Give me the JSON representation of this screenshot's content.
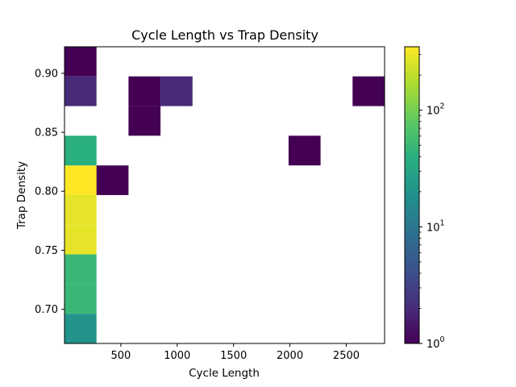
{
  "chart_data": {
    "type": "heatmap",
    "title": "Cycle Length vs Trap Density",
    "xlabel": "Cycle Length",
    "ylabel": "Trap Density",
    "xlim": [
      0,
      2840
    ],
    "ylim": [
      0.671,
      0.9225
    ],
    "x_ticks": [
      {
        "value": 500,
        "label": "500"
      },
      {
        "value": 1000,
        "label": "1000"
      },
      {
        "value": 1500,
        "label": "1500"
      },
      {
        "value": 2000,
        "label": "2000"
      },
      {
        "value": 2500,
        "label": "2500"
      }
    ],
    "y_ticks": [
      {
        "value": 0.7,
        "label": "0.70"
      },
      {
        "value": 0.75,
        "label": "0.75"
      },
      {
        "value": 0.8,
        "label": "0.80"
      },
      {
        "value": 0.85,
        "label": "0.85"
      },
      {
        "value": 0.9,
        "label": "0.90"
      }
    ],
    "grid": false,
    "colormap": "viridis",
    "colorbar": {
      "scale": "log",
      "vmin": 1,
      "vmax": 350,
      "ticks": [
        {
          "value": 1,
          "base": "10",
          "exp": "0"
        },
        {
          "value": 10,
          "base": "10",
          "exp": "1"
        },
        {
          "value": 100,
          "base": "10",
          "exp": "2"
        }
      ]
    },
    "cells": [
      {
        "x0": 0,
        "x1": 284,
        "y0": 0.671,
        "y1": 0.6962,
        "count": 20
      },
      {
        "x0": 0,
        "x1": 284,
        "y0": 0.6962,
        "y1": 0.7213,
        "count": 50
      },
      {
        "x0": 0,
        "x1": 284,
        "y0": 0.7213,
        "y1": 0.7465,
        "count": 50
      },
      {
        "x0": 0,
        "x1": 284,
        "y0": 0.7465,
        "y1": 0.7716,
        "count": 280
      },
      {
        "x0": 0,
        "x1": 284,
        "y0": 0.7716,
        "y1": 0.7968,
        "count": 280
      },
      {
        "x0": 0,
        "x1": 284,
        "y0": 0.7968,
        "y1": 0.8219,
        "count": 350
      },
      {
        "x0": 0,
        "x1": 284,
        "y0": 0.8219,
        "y1": 0.8471,
        "count": 40
      },
      {
        "x0": 0,
        "x1": 284,
        "y0": 0.8722,
        "y1": 0.8974,
        "count": 2
      },
      {
        "x0": 0,
        "x1": 284,
        "y0": 0.8974,
        "y1": 0.9225,
        "count": 1
      },
      {
        "x0": 284,
        "x1": 568,
        "y0": 0.7968,
        "y1": 0.8219,
        "count": 1
      },
      {
        "x0": 568,
        "x1": 852,
        "y0": 0.8471,
        "y1": 0.8722,
        "count": 1
      },
      {
        "x0": 568,
        "x1": 852,
        "y0": 0.8722,
        "y1": 0.8974,
        "count": 1
      },
      {
        "x0": 852,
        "x1": 1136,
        "y0": 0.8722,
        "y1": 0.8974,
        "count": 2
      },
      {
        "x0": 1988,
        "x1": 2272,
        "y0": 0.8219,
        "y1": 0.8471,
        "count": 1
      },
      {
        "x0": 2556,
        "x1": 2840,
        "y0": 0.8722,
        "y1": 0.8974,
        "count": 1
      }
    ]
  }
}
